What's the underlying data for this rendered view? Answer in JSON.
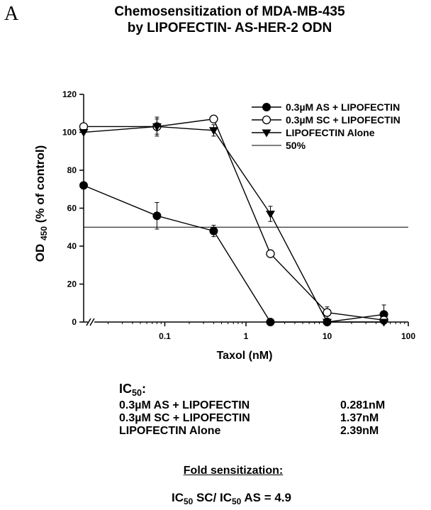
{
  "panel_letter": "A",
  "title_line1": "Chemosensitization of MDA-MB-435",
  "title_line2": "by LIPOFECTIN- AS-HER-2 ODN",
  "chart_data": {
    "type": "line",
    "xscale": "log",
    "xlabel": "Taxol (nM)",
    "ylabel_main": "OD ",
    "ylabel_sub": "450",
    "ylabel_rest": " (% of control)",
    "xlim": [
      0.01,
      100
    ],
    "ylim": [
      0,
      120
    ],
    "xticks": [
      0.1,
      1,
      10,
      100
    ],
    "xtick_labels": [
      "0.1",
      "1",
      "10",
      "100"
    ],
    "yticks": [
      0,
      20,
      40,
      60,
      80,
      100,
      120
    ],
    "ytick_labels": [
      "0",
      "20",
      "40",
      "60",
      "80",
      "100",
      "120"
    ],
    "axis_break": true,
    "legend_position": "top-right",
    "reference_line": {
      "name": "50%",
      "y": 50
    },
    "series": [
      {
        "name": "0.3µM AS + LIPOFECTIN",
        "marker": "filled-circle",
        "x": [
          0.01,
          0.08,
          0.4,
          2,
          10,
          50
        ],
        "y": [
          72,
          56,
          48,
          0,
          0,
          4
        ],
        "err": [
          0,
          7,
          3,
          0,
          0,
          5
        ]
      },
      {
        "name": "0.3µM SC + LIPOFECTIN",
        "marker": "open-circle",
        "x": [
          0.01,
          0.08,
          0.4,
          2,
          10,
          50
        ],
        "y": [
          103,
          103,
          107,
          36,
          5,
          1
        ],
        "err": [
          0,
          4,
          0,
          0,
          3,
          0
        ]
      },
      {
        "name": "LIPOFECTIN Alone",
        "marker": "filled-triangle-down",
        "x": [
          0.01,
          0.08,
          0.4,
          2,
          10,
          50
        ],
        "y": [
          100,
          103,
          101,
          57,
          0,
          0
        ],
        "err": [
          0,
          5,
          3,
          4,
          0,
          0
        ]
      }
    ]
  },
  "ic50": {
    "heading_main": "IC",
    "heading_sub": "50",
    "heading_rest": ":",
    "rows": [
      {
        "label": "0.3µM AS + LIPOFECTIN",
        "value": "0.281nM"
      },
      {
        "label": "0.3µM SC + LIPOFECTIN",
        "value": "1.37nM"
      },
      {
        "label": "LIPOFECTIN Alone",
        "value": "2.39nM"
      }
    ]
  },
  "fold_heading": "Fold sensitization:",
  "ratio": {
    "p1": "IC",
    "s1": "50",
    "p2": " SC/ IC",
    "s2": "50",
    "p3": " AS = 4.9"
  }
}
